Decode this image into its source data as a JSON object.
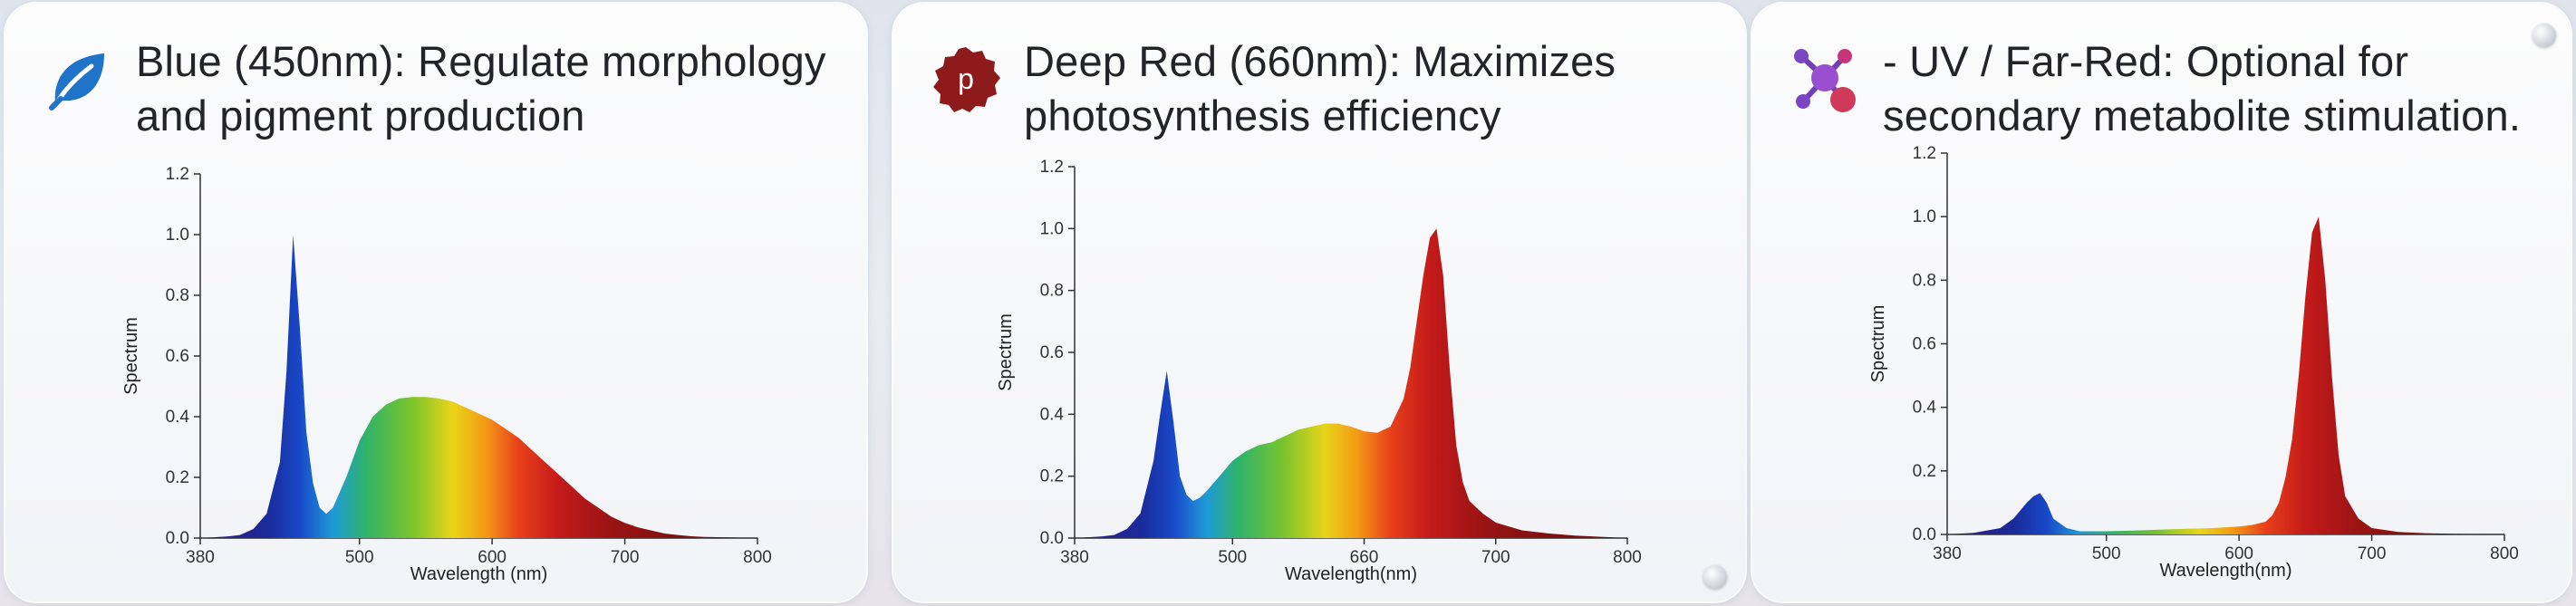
{
  "panels": [
    {
      "title_line1": "Blue (450nm): Regulate morphology",
      "title_line2": "and pigment production",
      "icon": "leaf-icon",
      "icon_color": "#1f73c9"
    },
    {
      "title_line1": "Deep Red (660nm): Maximizes",
      "title_line2": "photosynthesis efficiency",
      "icon": "p-badge-icon",
      "icon_letter": "p",
      "icon_color": "#8e1b1b"
    },
    {
      "title_line1": "- UV / Far-Red: Optional for",
      "title_line2": "secondary metabolite stimulation.",
      "icon": "molecule-icon",
      "icon_color": "#8e3fbf"
    }
  ],
  "chart_data": [
    {
      "type": "area",
      "ylabel": "Spectrum",
      "xlabel": "Wavelength (nm)",
      "xlim": [
        380,
        800
      ],
      "ylim": [
        0,
        1.2
      ],
      "x_ticks": [
        "380",
        "500",
        "600",
        "700",
        "800"
      ],
      "y_ticks": [
        "0.0",
        "0.2",
        "0.4",
        "0.6",
        "0.8",
        "1.0",
        "1.2"
      ],
      "x": [
        380,
        400,
        410,
        420,
        430,
        440,
        445,
        450,
        455,
        460,
        465,
        470,
        475,
        480,
        490,
        500,
        510,
        520,
        530,
        540,
        550,
        560,
        570,
        580,
        590,
        600,
        610,
        620,
        630,
        640,
        650,
        660,
        670,
        680,
        690,
        700,
        710,
        720,
        730,
        740,
        750,
        760,
        780,
        800
      ],
      "values": [
        0,
        0.005,
        0.01,
        0.03,
        0.08,
        0.25,
        0.55,
        1.0,
        0.7,
        0.35,
        0.18,
        0.1,
        0.08,
        0.1,
        0.2,
        0.32,
        0.4,
        0.44,
        0.46,
        0.465,
        0.465,
        0.46,
        0.45,
        0.43,
        0.41,
        0.39,
        0.36,
        0.33,
        0.29,
        0.25,
        0.21,
        0.17,
        0.13,
        0.1,
        0.07,
        0.05,
        0.035,
        0.025,
        0.015,
        0.01,
        0.006,
        0.004,
        0.002,
        0
      ]
    },
    {
      "type": "area",
      "ylabel": "Spectrum",
      "xlabel": "Wavelength(nm)",
      "xlim": [
        380,
        800
      ],
      "ylim": [
        0,
        1.2
      ],
      "x_ticks": [
        "380",
        "500",
        "660",
        "700",
        "800"
      ],
      "y_ticks": [
        "0.0",
        "0.2",
        "0.4",
        "0.6",
        "0.8",
        "1.0",
        "1.2"
      ],
      "x": [
        380,
        400,
        410,
        420,
        430,
        440,
        445,
        450,
        455,
        460,
        465,
        470,
        475,
        480,
        490,
        500,
        510,
        520,
        530,
        540,
        550,
        560,
        570,
        580,
        590,
        600,
        610,
        620,
        630,
        635,
        640,
        645,
        650,
        655,
        660,
        665,
        670,
        675,
        680,
        690,
        700,
        720,
        740,
        760,
        780,
        800
      ],
      "values": [
        0,
        0.005,
        0.01,
        0.03,
        0.08,
        0.25,
        0.4,
        0.54,
        0.38,
        0.2,
        0.14,
        0.12,
        0.13,
        0.15,
        0.2,
        0.25,
        0.28,
        0.3,
        0.31,
        0.33,
        0.35,
        0.36,
        0.37,
        0.37,
        0.36,
        0.345,
        0.34,
        0.36,
        0.45,
        0.55,
        0.7,
        0.85,
        0.97,
        1.0,
        0.85,
        0.55,
        0.3,
        0.18,
        0.12,
        0.08,
        0.05,
        0.025,
        0.015,
        0.008,
        0.004,
        0
      ]
    },
    {
      "type": "area",
      "ylabel": "Spectrum",
      "xlabel": "Wavelength(nm)",
      "xlim": [
        380,
        800
      ],
      "ylim": [
        0,
        1.2
      ],
      "x_ticks": [
        "380",
        "500",
        "600",
        "700",
        "800"
      ],
      "y_ticks": [
        "0.0",
        "0.2",
        "0.4",
        "0.6",
        "0.8",
        "1.0",
        "1.2"
      ],
      "x": [
        380,
        400,
        420,
        430,
        440,
        445,
        450,
        455,
        460,
        470,
        480,
        500,
        520,
        540,
        560,
        580,
        600,
        610,
        620,
        625,
        630,
        635,
        640,
        645,
        650,
        655,
        660,
        665,
        670,
        675,
        680,
        690,
        700,
        720,
        740,
        760,
        800
      ],
      "values": [
        0,
        0.005,
        0.02,
        0.05,
        0.1,
        0.12,
        0.13,
        0.1,
        0.05,
        0.02,
        0.01,
        0.01,
        0.012,
        0.015,
        0.018,
        0.02,
        0.025,
        0.03,
        0.04,
        0.06,
        0.1,
        0.18,
        0.3,
        0.5,
        0.75,
        0.95,
        1.0,
        0.8,
        0.5,
        0.25,
        0.12,
        0.05,
        0.02,
        0.008,
        0.004,
        0.002,
        0
      ]
    }
  ]
}
